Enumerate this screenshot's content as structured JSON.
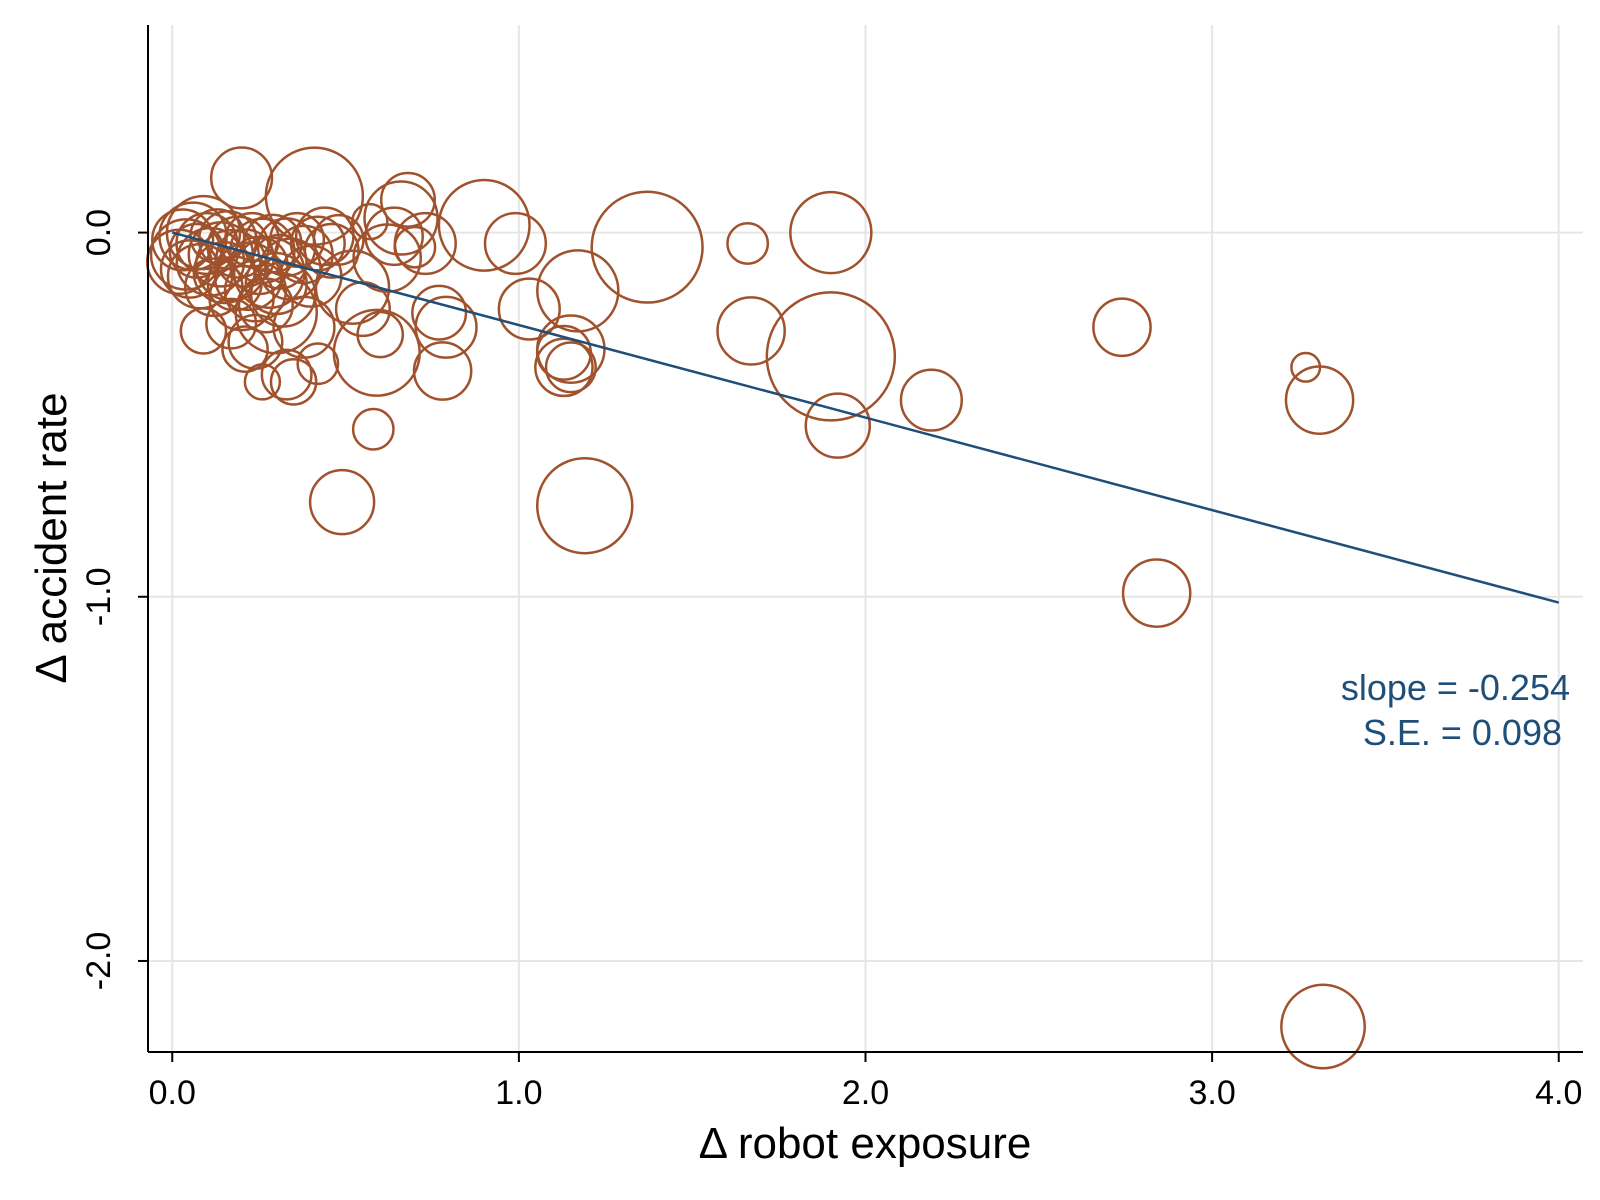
{
  "chart_data": {
    "type": "scatter",
    "xlabel": "Δ robot exposure",
    "ylabel": "Δ accident rate",
    "xlim": [
      -0.07,
      4.07
    ],
    "ylim": [
      -2.25,
      0.57
    ],
    "xticks": [
      {
        "value": 0.0,
        "label": "0.0"
      },
      {
        "value": 1.0,
        "label": "1.0"
      },
      {
        "value": 2.0,
        "label": "2.0"
      },
      {
        "value": 3.0,
        "label": "3.0"
      },
      {
        "value": 4.0,
        "label": "4.0"
      }
    ],
    "yticks": [
      {
        "value": 0.0,
        "label": "0.0"
      },
      {
        "value": -1.0,
        "label": "-1.0"
      },
      {
        "value": -2.0,
        "label": "-2.0"
      }
    ],
    "grid": true,
    "colors": {
      "points": "#a0522d",
      "fit_line": "#1f4e79",
      "grid": "#e6e6e6"
    },
    "annotation": {
      "line1": "slope = -0.254",
      "line2": "S.E. = 0.098"
    },
    "fit_line": {
      "x": [
        0.0,
        4.0
      ],
      "y": [
        0.0,
        -1.016
      ],
      "slope": -0.254,
      "se": 0.098
    },
    "points": [
      {
        "x": 0.02,
        "y": -0.08,
        "w": 1.0
      },
      {
        "x": 0.03,
        "y": -0.02,
        "w": 0.9
      },
      {
        "x": 0.04,
        "y": -0.06,
        "w": 1.2
      },
      {
        "x": 0.05,
        "y": -0.1,
        "w": 0.8
      },
      {
        "x": 0.06,
        "y": -0.01,
        "w": 1.1
      },
      {
        "x": 0.07,
        "y": -0.05,
        "w": 0.7
      },
      {
        "x": 0.08,
        "y": -0.12,
        "w": 1.0
      },
      {
        "x": 0.09,
        "y": 0.0,
        "w": 1.3
      },
      {
        "x": 0.1,
        "y": -0.03,
        "w": 0.9
      },
      {
        "x": 0.11,
        "y": -0.08,
        "w": 1.1
      },
      {
        "x": 0.12,
        "y": -0.15,
        "w": 0.8
      },
      {
        "x": 0.13,
        "y": -0.01,
        "w": 0.7
      },
      {
        "x": 0.14,
        "y": -0.06,
        "w": 1.0
      },
      {
        "x": 0.15,
        "y": -0.11,
        "w": 0.9
      },
      {
        "x": 0.16,
        "y": -0.02,
        "w": 0.8
      },
      {
        "x": 0.17,
        "y": -0.09,
        "w": 1.2
      },
      {
        "x": 0.18,
        "y": -0.14,
        "w": 0.7
      },
      {
        "x": 0.19,
        "y": -0.04,
        "w": 0.9
      },
      {
        "x": 0.2,
        "y": -0.18,
        "w": 1.0
      },
      {
        "x": 0.21,
        "y": -0.07,
        "w": 0.8
      },
      {
        "x": 0.22,
        "y": -0.12,
        "w": 1.1
      },
      {
        "x": 0.23,
        "y": -0.02,
        "w": 0.7
      },
      {
        "x": 0.24,
        "y": -0.16,
        "w": 0.9
      },
      {
        "x": 0.25,
        "y": -0.09,
        "w": 0.8
      },
      {
        "x": 0.26,
        "y": -0.05,
        "w": 1.0
      },
      {
        "x": 0.27,
        "y": -0.2,
        "w": 0.7
      },
      {
        "x": 0.28,
        "y": -0.11,
        "w": 1.2
      },
      {
        "x": 0.29,
        "y": -0.03,
        "w": 0.8
      },
      {
        "x": 0.3,
        "y": -0.14,
        "w": 0.9
      },
      {
        "x": 0.31,
        "y": -0.08,
        "w": 0.7
      },
      {
        "x": 0.32,
        "y": -0.17,
        "w": 1.0
      },
      {
        "x": 0.33,
        "y": -0.04,
        "w": 0.8
      },
      {
        "x": 0.34,
        "y": -0.1,
        "w": 0.9
      },
      {
        "x": 0.36,
        "y": -0.02,
        "w": 0.7
      },
      {
        "x": 0.38,
        "y": -0.06,
        "w": 0.8
      },
      {
        "x": 0.4,
        "y": -0.12,
        "w": 0.9
      },
      {
        "x": 0.42,
        "y": -0.03,
        "w": 0.7
      },
      {
        "x": 0.44,
        "y": -0.01,
        "w": 0.8
      },
      {
        "x": 0.46,
        "y": -0.05,
        "w": 0.7
      },
      {
        "x": 0.48,
        "y": -0.02,
        "w": 0.6
      },
      {
        "x": 0.09,
        "y": -0.27,
        "w": 0.5
      },
      {
        "x": 0.17,
        "y": -0.25,
        "w": 0.6
      },
      {
        "x": 0.2,
        "y": 0.15,
        "w": 0.9
      },
      {
        "x": 0.21,
        "y": -0.32,
        "w": 0.5
      },
      {
        "x": 0.24,
        "y": -0.3,
        "w": 0.7
      },
      {
        "x": 0.26,
        "y": -0.41,
        "w": 0.3
      },
      {
        "x": 0.3,
        "y": -0.22,
        "w": 1.6
      },
      {
        "x": 0.33,
        "y": -0.39,
        "w": 0.6
      },
      {
        "x": 0.35,
        "y": -0.41,
        "w": 0.5
      },
      {
        "x": 0.38,
        "y": -0.26,
        "w": 0.9
      },
      {
        "x": 0.41,
        "y": 0.1,
        "w": 2.3
      },
      {
        "x": 0.42,
        "y": -0.36,
        "w": 0.4
      },
      {
        "x": 0.49,
        "y": -0.74,
        "w": 1.0
      },
      {
        "x": 0.52,
        "y": -0.15,
        "w": 1.3
      },
      {
        "x": 0.55,
        "y": -0.21,
        "w": 0.7
      },
      {
        "x": 0.57,
        "y": 0.03,
        "w": 0.3
      },
      {
        "x": 0.58,
        "y": -0.54,
        "w": 0.4
      },
      {
        "x": 0.59,
        "y": -0.33,
        "w": 1.8
      },
      {
        "x": 0.6,
        "y": -0.28,
        "w": 0.5
      },
      {
        "x": 0.62,
        "y": -0.07,
        "w": 1.1
      },
      {
        "x": 0.64,
        "y": -0.01,
        "w": 0.8
      },
      {
        "x": 0.66,
        "y": 0.04,
        "w": 1.3
      },
      {
        "x": 0.68,
        "y": 0.09,
        "w": 0.7
      },
      {
        "x": 0.7,
        "y": -0.04,
        "w": 0.4
      },
      {
        "x": 0.73,
        "y": -0.03,
        "w": 0.9
      },
      {
        "x": 0.77,
        "y": -0.22,
        "w": 0.7
      },
      {
        "x": 0.78,
        "y": -0.38,
        "w": 0.8
      },
      {
        "x": 0.79,
        "y": -0.26,
        "w": 0.9
      },
      {
        "x": 0.9,
        "y": 0.02,
        "w": 2.0
      },
      {
        "x": 0.99,
        "y": -0.03,
        "w": 0.9
      },
      {
        "x": 1.03,
        "y": -0.21,
        "w": 0.9
      },
      {
        "x": 1.13,
        "y": -0.33,
        "w": 0.7
      },
      {
        "x": 1.13,
        "y": -0.37,
        "w": 0.8
      },
      {
        "x": 1.15,
        "y": -0.32,
        "w": 1.1
      },
      {
        "x": 1.15,
        "y": -0.37,
        "w": 0.6
      },
      {
        "x": 1.17,
        "y": -0.16,
        "w": 1.6
      },
      {
        "x": 1.19,
        "y": -0.75,
        "w": 2.2
      },
      {
        "x": 1.37,
        "y": -0.04,
        "w": 3.0
      },
      {
        "x": 1.66,
        "y": -0.03,
        "w": 0.4
      },
      {
        "x": 1.67,
        "y": -0.27,
        "w": 1.1
      },
      {
        "x": 1.9,
        "y": 0.0,
        "w": 1.6
      },
      {
        "x": 1.9,
        "y": -0.34,
        "w": 4.0
      },
      {
        "x": 1.92,
        "y": -0.53,
        "w": 1.0
      },
      {
        "x": 2.19,
        "y": -0.46,
        "w": 0.9
      },
      {
        "x": 2.74,
        "y": -0.26,
        "w": 0.8
      },
      {
        "x": 2.84,
        "y": -0.99,
        "w": 1.1
      },
      {
        "x": 3.27,
        "y": -0.37,
        "w": 0.2
      },
      {
        "x": 3.31,
        "y": -0.46,
        "w": 1.1
      },
      {
        "x": 3.32,
        "y": -2.18,
        "w": 1.7
      }
    ]
  }
}
